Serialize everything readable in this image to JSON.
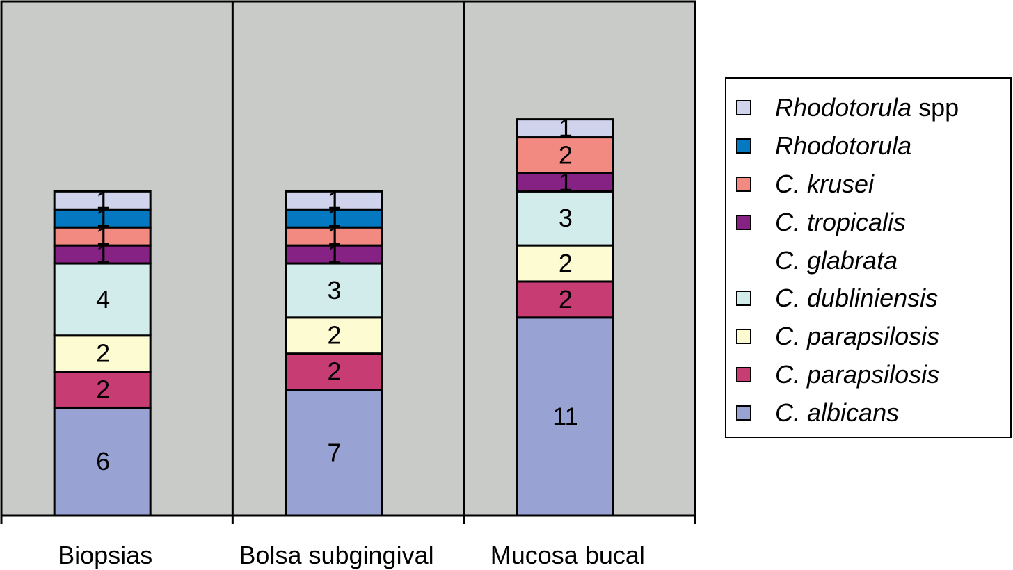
{
  "chart_data": {
    "type": "bar",
    "stacked": true,
    "categories": [
      "Biopsias",
      "Bolsa subgingival",
      "Mucosa bucal"
    ],
    "series": [
      {
        "name": "C. albicans",
        "italic": "C. albicans",
        "rest": "",
        "color": "#98a3d3",
        "values": [
          6,
          7,
          11
        ]
      },
      {
        "name": "C. parapsilosis",
        "italic": "C. parapsilosis",
        "rest": "",
        "color": "#c83c74",
        "values": [
          2,
          2,
          2
        ]
      },
      {
        "name": "C. parapsilosis",
        "italic": "C. parapsilosis",
        "rest": "",
        "color": "#fcfbd2",
        "values": [
          2,
          2,
          2
        ]
      },
      {
        "name": "C. dubliniensis",
        "italic": "C. dubliniensis",
        "rest": "",
        "color": "#d2ebeb",
        "values": [
          4,
          3,
          3
        ]
      },
      {
        "name": "C. glabrata",
        "italic": "C. glabrata",
        "rest": "",
        "color": "#d2ebeb",
        "values": [
          0,
          0,
          0
        ]
      },
      {
        "name": "C. tropicalis",
        "italic": "C. tropicalis",
        "rest": "",
        "color": "#862284",
        "values": [
          1,
          1,
          1
        ]
      },
      {
        "name": "C. krusei",
        "italic": "C. krusei",
        "rest": "",
        "color": "#f28a82",
        "values": [
          1,
          1,
          2
        ]
      },
      {
        "name": "Rhodotorula",
        "italic": "Rhodotorula",
        "rest": "",
        "color": "#0479c2",
        "values": [
          1,
          1,
          0
        ]
      },
      {
        "name": "Rhodotorula spp",
        "italic": "Rhodotorula",
        "rest": " spp",
        "color": "#d0d3ec",
        "values": [
          1,
          1,
          1
        ]
      }
    ],
    "legend_order": [
      8,
      7,
      6,
      5,
      4,
      3,
      2,
      1,
      0
    ],
    "legend_swatch_colors": [
      "#d0d3ec",
      "#0479c2",
      "#f28a82",
      "#862284",
      null,
      "#d2ebeb",
      "#fcfbd2",
      "#c83c74",
      "#98a3d3"
    ],
    "plot_background": "#c9cbc8",
    "legend_position": "right"
  }
}
